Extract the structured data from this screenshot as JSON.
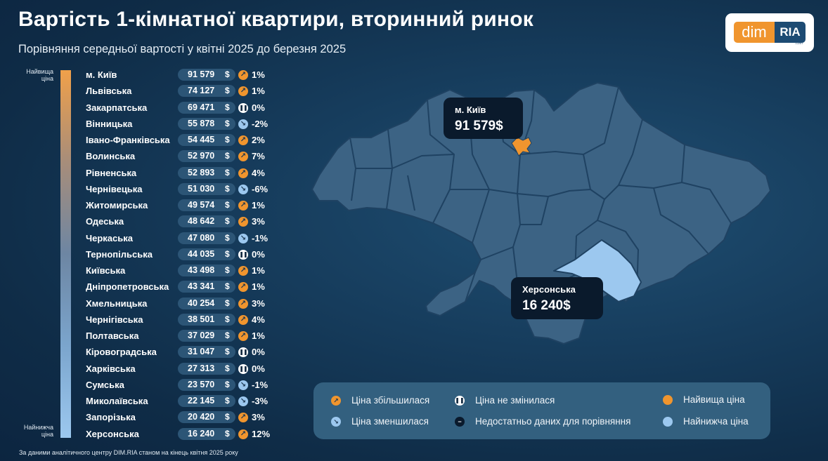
{
  "header": {
    "title": "Вартість 1-кімнатної квартири, вторинний ринок",
    "subtitle": "Порівняння середньої вартості у квітні 2025 до березня 2025"
  },
  "logo": {
    "left": "dim",
    "right": "RIA",
    "suffix": ".com"
  },
  "scale": {
    "top_label": "Найвища ціна",
    "bottom_label": "Найнижча ціна"
  },
  "colors": {
    "highest": "#f0952e",
    "lowest": "#9cc8ef",
    "map_region": "#3c6384",
    "map_border": "#1f4262",
    "background": "#163c5c"
  },
  "chart_data": {
    "type": "table",
    "currency": "$",
    "columns": [
      "region",
      "price",
      "change"
    ],
    "rows": [
      {
        "region": "м. Київ",
        "price": "91 579",
        "value": 91579,
        "trend": "up",
        "change": "1%"
      },
      {
        "region": "Львівська",
        "price": "74 127",
        "value": 74127,
        "trend": "up",
        "change": "1%"
      },
      {
        "region": "Закарпатська",
        "price": "69 471",
        "value": 69471,
        "trend": "same",
        "change": "0%"
      },
      {
        "region": "Вінницька",
        "price": "55 878",
        "value": 55878,
        "trend": "down",
        "change": "-2%"
      },
      {
        "region": "Івано-Франківська",
        "price": "54 445",
        "value": 54445,
        "trend": "up",
        "change": "2%"
      },
      {
        "region": "Волинська",
        "price": "52 970",
        "value": 52970,
        "trend": "up",
        "change": "7%"
      },
      {
        "region": "Рівненська",
        "price": "52 893",
        "value": 52893,
        "trend": "up",
        "change": "4%"
      },
      {
        "region": "Чернівецька",
        "price": "51 030",
        "value": 51030,
        "trend": "down",
        "change": "-6%"
      },
      {
        "region": "Житомирська",
        "price": "49 574",
        "value": 49574,
        "trend": "up",
        "change": "1%"
      },
      {
        "region": "Одеська",
        "price": "48 642",
        "value": 48642,
        "trend": "up",
        "change": "3%"
      },
      {
        "region": "Черкаська",
        "price": "47 080",
        "value": 47080,
        "trend": "down",
        "change": "-1%"
      },
      {
        "region": "Тернопільська",
        "price": "44 035",
        "value": 44035,
        "trend": "same",
        "change": "0%"
      },
      {
        "region": "Київська",
        "price": "43 498",
        "value": 43498,
        "trend": "up",
        "change": "1%"
      },
      {
        "region": "Дніпропетровська",
        "price": "43 341",
        "value": 43341,
        "trend": "up",
        "change": "1%"
      },
      {
        "region": "Хмельницька",
        "price": "40 254",
        "value": 40254,
        "trend": "up",
        "change": "3%"
      },
      {
        "region": "Чернігівська",
        "price": "38 501",
        "value": 38501,
        "trend": "up",
        "change": "4%"
      },
      {
        "region": "Полтавська",
        "price": "37 029",
        "value": 37029,
        "trend": "up",
        "change": "1%"
      },
      {
        "region": "Кіровоградська",
        "price": "31 047",
        "value": 31047,
        "trend": "same",
        "change": "0%"
      },
      {
        "region": "Харківська",
        "price": "27 313",
        "value": 27313,
        "trend": "same",
        "change": "0%"
      },
      {
        "region": "Сумська",
        "price": "23 570",
        "value": 23570,
        "trend": "down",
        "change": "-1%"
      },
      {
        "region": "Миколаївська",
        "price": "22 145",
        "value": 22145,
        "trend": "down",
        "change": "-3%"
      },
      {
        "region": "Запорізька",
        "price": "20 420",
        "value": 20420,
        "trend": "up",
        "change": "3%"
      },
      {
        "region": "Херсонська",
        "price": "16 240",
        "value": 16240,
        "trend": "up",
        "change": "12%"
      }
    ]
  },
  "callouts": {
    "kyiv": {
      "name": "м. Київ",
      "value": "91 579$"
    },
    "kherson": {
      "name": "Херсонська",
      "value": "16 240$"
    }
  },
  "legend": {
    "increased": "Ціна збільшилася",
    "decreased": "Ціна зменшилася",
    "unchanged": "Ціна не змінилася",
    "no_data": "Недостатньо даних для порівняння",
    "highest": "Найвища ціна",
    "lowest": "Найнижча ціна"
  },
  "footnote": "За даними аналітичного центру DIM.RIA станом на кінець квітня 2025 року",
  "icons": {
    "up": "arrow-up-right-icon",
    "down": "arrow-down-right-icon",
    "same": "pause-icon",
    "no_data": "minus-icon"
  }
}
